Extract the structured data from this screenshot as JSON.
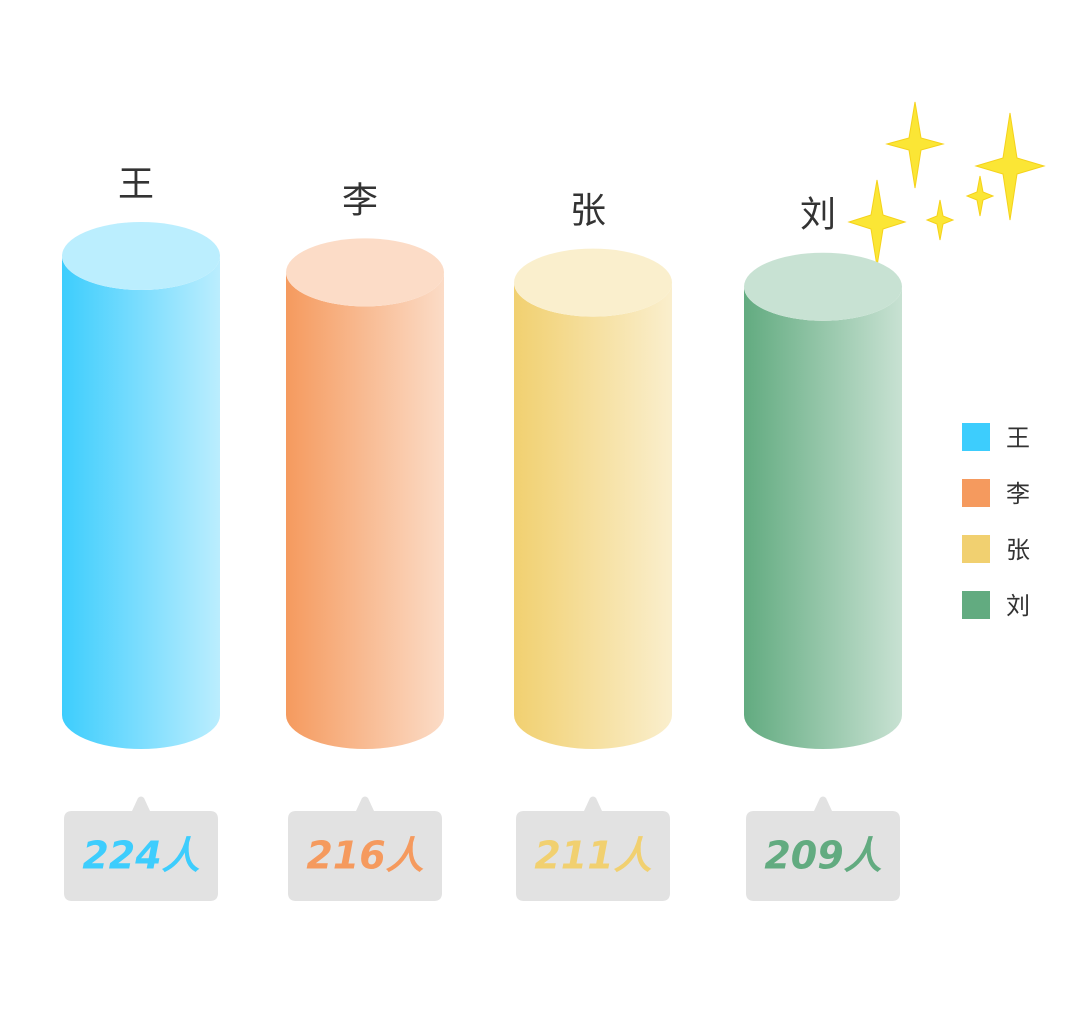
{
  "chart_data": {
    "type": "bar",
    "categories": [
      "王",
      "李",
      "张",
      "刘"
    ],
    "values": [
      224,
      216,
      211,
      209
    ],
    "value_labels": [
      "224人",
      "216人",
      "211人",
      "209人"
    ],
    "colors": [
      "#3dcdfd",
      "#f59a5e",
      "#f1d070",
      "#62ab80"
    ]
  }
}
